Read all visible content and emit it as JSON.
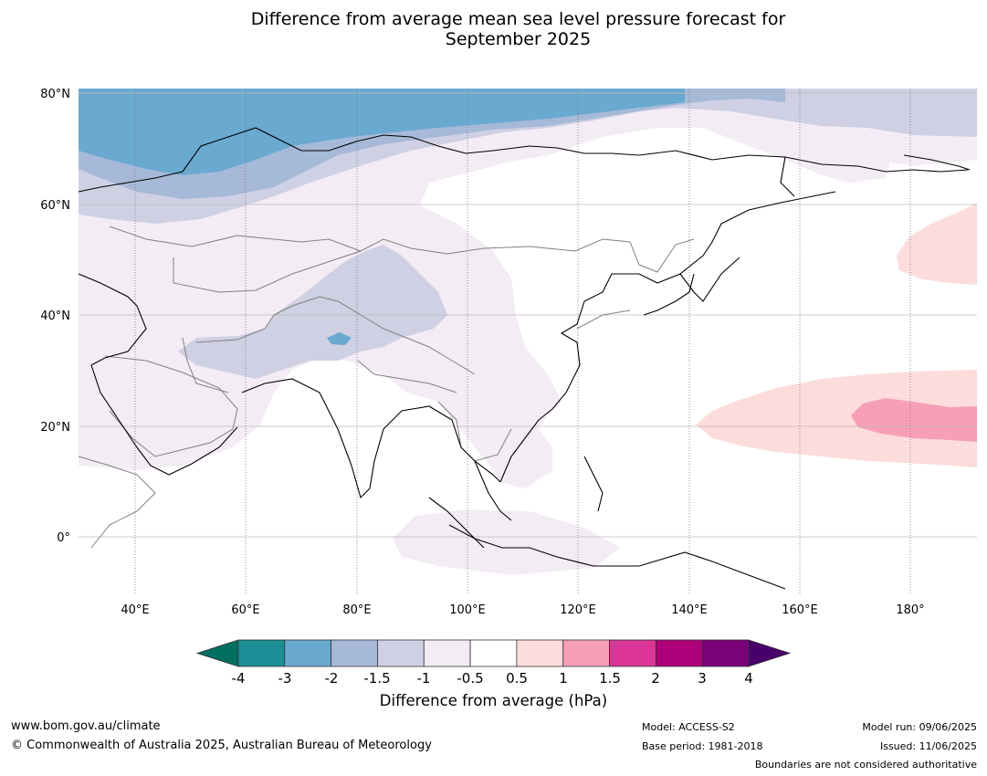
{
  "title": {
    "line1": "Difference from average mean sea level pressure forecast for",
    "line2": "September 2025"
  },
  "map": {
    "lat_labels": [
      "80°N",
      "60°N",
      "40°N",
      "20°N",
      "0°"
    ],
    "lon_labels": [
      "40°E",
      "60°E",
      "80°E",
      "100°E",
      "120°E",
      "140°E",
      "160°E",
      "180°"
    ],
    "extent": {
      "lon_min": 30,
      "lon_max": 192,
      "lat_min": -10,
      "lat_max": 81
    }
  },
  "colorbar": {
    "title": "Difference from average (hPa)",
    "tick_labels": [
      "-4",
      "-3",
      "-2",
      "-1.5",
      "-1",
      "-0.5",
      "0.5",
      "1",
      "1.5",
      "2",
      "3",
      "4"
    ],
    "colors": {
      "under": "#006f5f",
      "bins": [
        "#1b8f96",
        "#6aa9d0",
        "#a6b9d8",
        "#cfd0e3",
        "#f3ecf4",
        "#ffffff",
        "#fddcdc",
        "#f89fb8",
        "#db3597",
        "#ae0179",
        "#7a0177"
      ],
      "over": "#48006a"
    }
  },
  "footer": {
    "website": "www.bom.gov.au/climate",
    "copyright": "© Commonwealth of Australia 2025, Australian Bureau of Meteorology",
    "model": "Model: ACCESS-S2",
    "base_period": "Base period: 1981-2018",
    "model_run": "Model run: 09/06/2025",
    "issued": "Issued: 11/06/2025",
    "disclaimer": "Boundaries are not considered authoritative"
  }
}
